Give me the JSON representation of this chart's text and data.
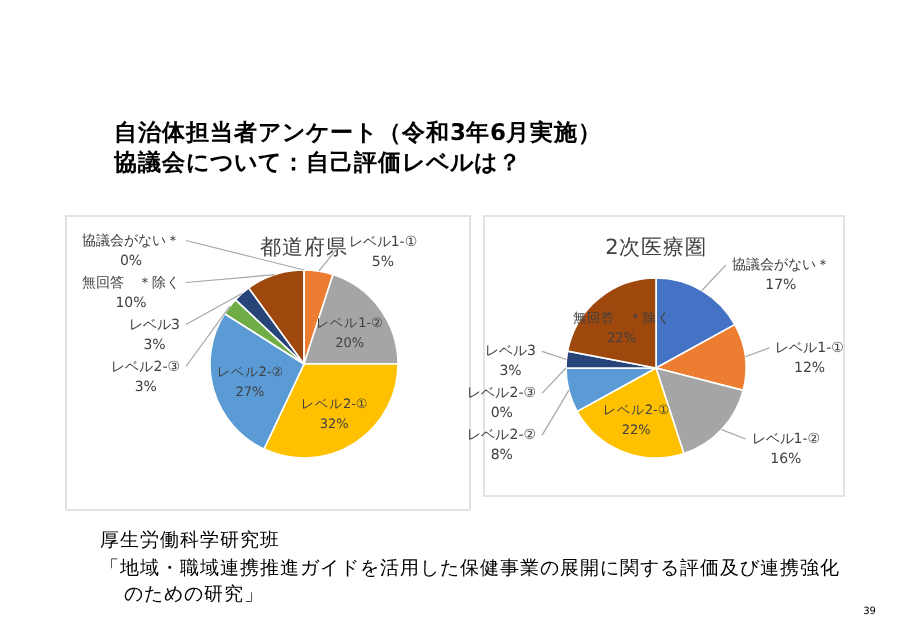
{
  "chart_data": [
    {
      "type": "pie",
      "title": "都道府県",
      "categories": [
        "レベル1-①",
        "レベル1-②",
        "レベル2-①",
        "レベル2-②",
        "レベル2-③",
        "レベル3",
        "無回答　＊除く",
        "協議会がない＊"
      ],
      "values": [
        5,
        20,
        32,
        27,
        3,
        3,
        10,
        0
      ],
      "value_labels": [
        "5%",
        "20%",
        "32%",
        "27%",
        "3%",
        "3%",
        "10%",
        "0%"
      ],
      "colors": [
        "#ed7d31",
        "#a5a5a5",
        "#ffc000",
        "#5b9bd5",
        "#70ad47",
        "#264478",
        "#9e480e",
        "#4472c4"
      ],
      "annotations": [
        "自治体担当者アンケート（令和3年6月実施）",
        "協議会について：自己評価レベルは？"
      ]
    },
    {
      "type": "pie",
      "title": "2次医療圏",
      "categories": [
        "協議会がない＊",
        "レベル1-①",
        "レベル1-②",
        "レベル2-①",
        "レベル2-②",
        "レベル2-③",
        "レベル3",
        "無回答　＊除く"
      ],
      "values": [
        17,
        12,
        16,
        22,
        8,
        0,
        3,
        22
      ],
      "value_labels": [
        "17%",
        "12%",
        "16%",
        "22%",
        "8%",
        "0%",
        "3%",
        "22%"
      ],
      "colors": [
        "#4472c4",
        "#ed7d31",
        "#a5a5a5",
        "#ffc000",
        "#5b9bd5",
        "#70ad47",
        "#264478",
        "#9e480e"
      ],
      "annotations": [
        "厚生労働科学研究班",
        "「地域・職域連携推進ガイドを活用した保健事業の展開に関する評価及び連携強化",
        "のための研究」",
        "39"
      ]
    }
  ]
}
